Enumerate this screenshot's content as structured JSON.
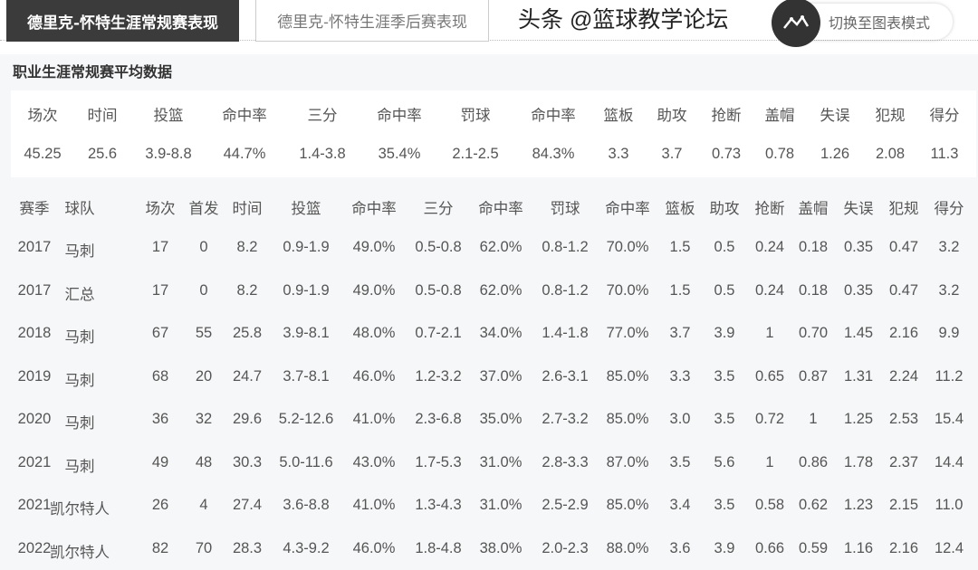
{
  "tabs": [
    {
      "label": "德里克-怀特生涯常规赛表现",
      "active": true
    },
    {
      "label": "德里克-怀特生涯季后赛表现",
      "active": false
    }
  ],
  "toggle": {
    "label": "切换至图表模式",
    "icon": "line-chart-icon"
  },
  "summary": {
    "title": "职业生涯常规赛平均数据",
    "headers": [
      "场次",
      "时间",
      "投篮",
      "命中率",
      "三分",
      "命中率",
      "罚球",
      "命中率",
      "篮板",
      "助攻",
      "抢断",
      "盖帽",
      "失误",
      "犯规",
      "得分"
    ],
    "values": [
      "45.25",
      "25.6",
      "3.9-8.8",
      "44.7%",
      "1.4-3.8",
      "35.4%",
      "2.1-2.5",
      "84.3%",
      "3.3",
      "3.7",
      "0.73",
      "0.78",
      "1.26",
      "2.08",
      "11.3"
    ]
  },
  "seasons": {
    "headers": [
      "赛季",
      "球队",
      "场次",
      "首发",
      "时间",
      "投篮",
      "命中率",
      "三分",
      "命中率",
      "罚球",
      "命中率",
      "篮板",
      "助攻",
      "抢断",
      "盖帽",
      "失误",
      "犯规",
      "得分"
    ],
    "rows": [
      [
        "2017",
        "马刺",
        "17",
        "0",
        "8.2",
        "0.9-1.9",
        "49.0%",
        "0.5-0.8",
        "62.0%",
        "0.8-1.2",
        "70.0%",
        "1.5",
        "0.5",
        "0.24",
        "0.18",
        "0.35",
        "0.47",
        "3.2"
      ],
      [
        "2017",
        "汇总",
        "17",
        "0",
        "8.2",
        "0.9-1.9",
        "49.0%",
        "0.5-0.8",
        "62.0%",
        "0.8-1.2",
        "70.0%",
        "1.5",
        "0.5",
        "0.24",
        "0.18",
        "0.35",
        "0.47",
        "3.2"
      ],
      [
        "2018",
        "马刺",
        "67",
        "55",
        "25.8",
        "3.9-8.1",
        "48.0%",
        "0.7-2.1",
        "34.0%",
        "1.4-1.8",
        "77.0%",
        "3.7",
        "3.9",
        "1",
        "0.70",
        "1.45",
        "2.16",
        "9.9"
      ],
      [
        "2019",
        "马刺",
        "68",
        "20",
        "24.7",
        "3.7-8.1",
        "46.0%",
        "1.2-3.2",
        "37.0%",
        "2.6-3.1",
        "85.0%",
        "3.3",
        "3.5",
        "0.65",
        "0.87",
        "1.31",
        "2.24",
        "11.2"
      ],
      [
        "2020",
        "马刺",
        "36",
        "32",
        "29.6",
        "5.2-12.6",
        "41.0%",
        "2.3-6.8",
        "35.0%",
        "2.7-3.2",
        "85.0%",
        "3.0",
        "3.5",
        "0.72",
        "1",
        "1.25",
        "2.53",
        "15.4"
      ],
      [
        "2021",
        "马刺",
        "49",
        "48",
        "30.3",
        "5.0-11.6",
        "43.0%",
        "1.7-5.3",
        "31.0%",
        "2.8-3.3",
        "87.0%",
        "3.5",
        "5.6",
        "1",
        "0.86",
        "1.78",
        "2.37",
        "14.4"
      ],
      [
        "2021",
        "凯尔特人",
        "26",
        "4",
        "27.4",
        "3.6-8.8",
        "41.0%",
        "1.3-4.3",
        "31.0%",
        "2.5-2.9",
        "85.0%",
        "3.4",
        "3.5",
        "0.58",
        "0.62",
        "1.23",
        "2.15",
        "11.0"
      ],
      [
        "2022",
        "凯尔特人",
        "82",
        "70",
        "28.3",
        "4.3-9.2",
        "46.0%",
        "1.8-4.8",
        "38.0%",
        "2.0-2.3",
        "88.0%",
        "3.6",
        "3.9",
        "0.66",
        "0.59",
        "1.16",
        "2.16",
        "12.4"
      ]
    ]
  },
  "watermark": "头条 @篮球教学论坛"
}
